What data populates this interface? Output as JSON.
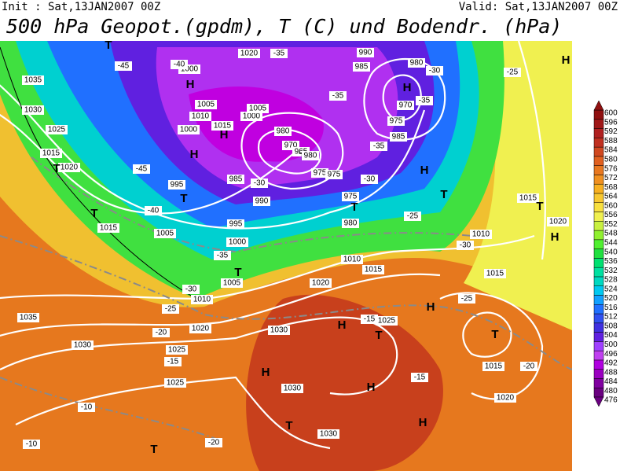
{
  "header": {
    "init": "Init : Sat,13JAN2007 00Z",
    "valid": "Valid: Sat,13JAN2007 00Z",
    "title": "500 hPa Geopot.(gpdm), T (C) und Bodendr. (hPa)"
  },
  "colorbar": {
    "levels": [
      476,
      480,
      484,
      488,
      492,
      496,
      500,
      504,
      508,
      512,
      516,
      520,
      524,
      528,
      532,
      536,
      540,
      544,
      548,
      552,
      556,
      560,
      564,
      568,
      572,
      576,
      580,
      584,
      588,
      592,
      596,
      600
    ],
    "colors": [
      "#6a0080",
      "#8000a0",
      "#9a00c0",
      "#b000e0",
      "#c040f0",
      "#a040ff",
      "#6020e0",
      "#4030e0",
      "#3050f0",
      "#2070ff",
      "#10a0ff",
      "#00c8f0",
      "#00d8c0",
      "#00e0a0",
      "#00e070",
      "#20e040",
      "#50f030",
      "#90f030",
      "#c8f040",
      "#f0f050",
      "#f8e040",
      "#f8c830",
      "#f8b020",
      "#f09020",
      "#e87820",
      "#e06020",
      "#d04820",
      "#c03020",
      "#b02020",
      "#a01818",
      "#901010"
    ]
  },
  "map": {
    "labels": [
      "1035",
      "1030",
      "1025",
      "1015",
      "1020",
      "T",
      "T",
      "1015",
      "1005",
      "995",
      "1000",
      "990",
      "985",
      "-45",
      "-40",
      "995",
      "T",
      "H",
      "1000",
      "1010",
      "1005",
      "1015",
      "H",
      "1000",
      "1005",
      "980",
      "970",
      "965",
      "T",
      "975",
      "975",
      "980",
      "H",
      "T",
      "975",
      "T",
      "980",
      "1010",
      "1015",
      "1015",
      "T",
      "1020",
      "H",
      "1035",
      "1030",
      "1025",
      "1025",
      "1020",
      "1010",
      "1005",
      "T",
      "1030",
      "H",
      "H",
      "1030",
      "H",
      "T",
      "1030",
      "H",
      "T",
      "1025",
      "T",
      "H",
      "T",
      "1015",
      "1020",
      "H",
      "1020",
      "1000",
      "H",
      "T",
      "990",
      "985",
      "980",
      "H",
      "970",
      "975",
      "985",
      "1010",
      "1015",
      "1020",
      "-35",
      "-45",
      "-40",
      "-30",
      "-25",
      "-35",
      "-35",
      "-35",
      "-30",
      "-30",
      "-25",
      "-30",
      "-35",
      "-30",
      "-25",
      "-20",
      "-15",
      "-10",
      "-10",
      "-20",
      "-15",
      "-20",
      "-15",
      "-25"
    ]
  }
}
